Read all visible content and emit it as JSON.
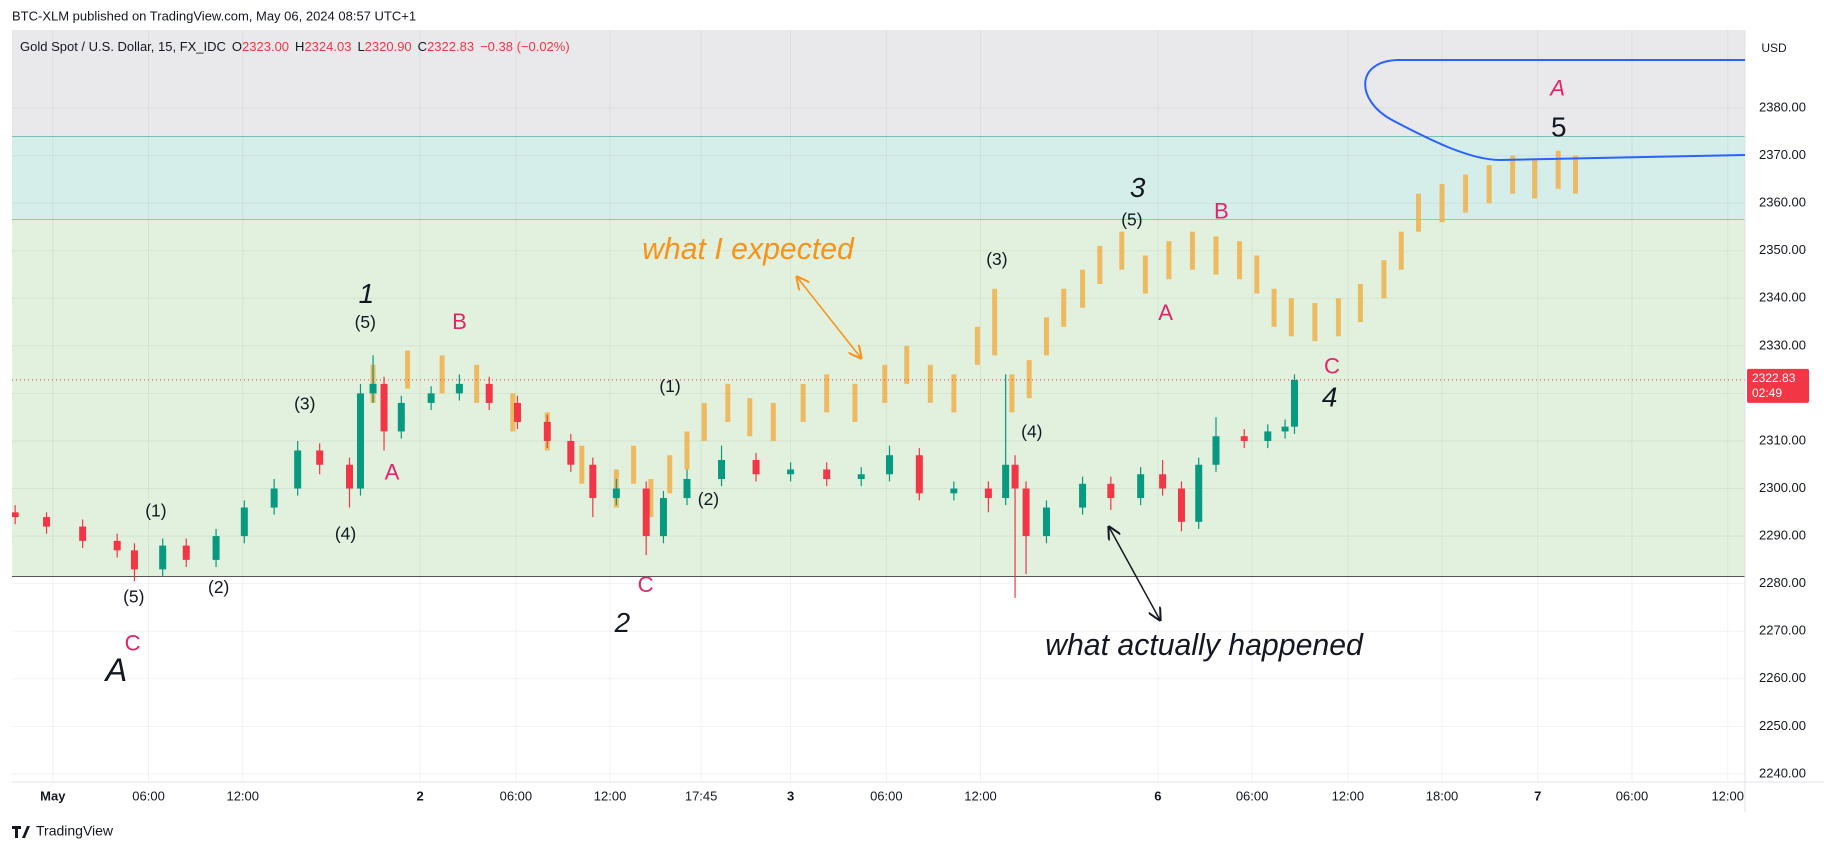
{
  "chart_data": {
    "type": "candlestick",
    "header": "BTC-XLM published on TradingView.com, May 06, 2024 08:57 UTC+1",
    "symbol": "Gold Spot / U.S. Dollar, 15, FX_IDC",
    "ohlc_legend": [
      {
        "key": "O",
        "value": "2323.00"
      },
      {
        "key": "H",
        "value": "2324.03"
      },
      {
        "key": "L",
        "value": "2320.90"
      },
      {
        "key": "C",
        "value": "2322.83"
      }
    ],
    "change": "−0.38 (−0.02%)",
    "currency": "USD",
    "footer": "TradingView",
    "last_price": 2322.83,
    "countdown": "02:49",
    "xlim": [
      -2.6,
      107.8
    ],
    "xticks": [
      {
        "value": 0,
        "label": "May"
      },
      {
        "value": 6.1,
        "label": "06:00"
      },
      {
        "value": 12.1,
        "label": "12:00"
      },
      {
        "value": 23.4,
        "label": "2"
      },
      {
        "value": 29.5,
        "label": "06:00"
      },
      {
        "value": 35.5,
        "label": "12:00"
      },
      {
        "value": 41.3,
        "label": "17:45"
      },
      {
        "value": 47,
        "label": "3"
      },
      {
        "value": 53.1,
        "label": "06:00"
      },
      {
        "value": 59.1,
        "label": "12:00"
      },
      {
        "value": 70.4,
        "label": "6"
      },
      {
        "value": 76.4,
        "label": "06:00"
      },
      {
        "value": 82.5,
        "label": "12:00"
      },
      {
        "value": 88.5,
        "label": "18:00"
      },
      {
        "value": 94.6,
        "label": "7"
      },
      {
        "value": 100.6,
        "label": "06:00"
      },
      {
        "value": 106.7,
        "label": "12:00"
      }
    ],
    "ylim": [
      2238.3,
      2396.4
    ],
    "yticks": [
      {
        "value": 2240,
        "label": "2240.00"
      },
      {
        "value": 2250,
        "label": "2250.00"
      },
      {
        "value": 2260,
        "label": "2260.00"
      },
      {
        "value": 2270,
        "label": "2270.00"
      },
      {
        "value": 2280,
        "label": "2280.00"
      },
      {
        "value": 2290,
        "label": "2290.00"
      },
      {
        "value": 2300,
        "label": "2300.00"
      },
      {
        "value": 2310,
        "label": "2310.00"
      },
      {
        "value": 2320,
        "label": "2320.00"
      },
      {
        "value": 2330,
        "label": "2330.00"
      },
      {
        "value": 2340,
        "label": "2340.00"
      },
      {
        "value": 2350,
        "label": "2350.00"
      },
      {
        "value": 2360,
        "label": "2360.00"
      },
      {
        "value": 2370,
        "label": "2370.00"
      },
      {
        "value": 2380,
        "label": "2380.00"
      }
    ],
    "grid": true,
    "zones": [
      {
        "from": 2374,
        "to": 2400,
        "color": "#e9e9ec",
        "border": "#2a9d8f"
      },
      {
        "from": 2356.5,
        "to": 2374,
        "color": "#d6eeea",
        "border": "#4caf50"
      },
      {
        "from": 2281.5,
        "to": 2356.5,
        "color": "#e1f1de",
        "border": "#555555"
      }
    ],
    "candles": {
      "up_color": "#089981",
      "down_color": "#f23645",
      "x": [
        -2.4,
        -0.4,
        1.9,
        4.1,
        5.2,
        7.0,
        8.5,
        10.4,
        12.2,
        14.1,
        15.6,
        17.0,
        18.9,
        19.6,
        20.4,
        21.1,
        22.2,
        24.1,
        25.9,
        27.8,
        29.6,
        31.5,
        33.0,
        34.4,
        35.9,
        37.8,
        38.9,
        40.4,
        42.6,
        44.8,
        47.0,
        49.3,
        51.5,
        53.3,
        55.2,
        57.4,
        59.6,
        60.7,
        61.3,
        62.0,
        63.3,
        65.6,
        67.4,
        69.3,
        70.7,
        71.9,
        73.0,
        74.1,
        75.9,
        77.4,
        78.5,
        79.1
      ],
      "open": [
        2295,
        2294,
        2292,
        2289,
        2287,
        2283,
        2288,
        2285,
        2290,
        2296,
        2300,
        2308,
        2305,
        2300,
        2320,
        2322,
        2312,
        2318,
        2320,
        2322,
        2318,
        2314,
        2310,
        2305,
        2298,
        2300,
        2290,
        2298,
        2302,
        2306,
        2303,
        2304,
        2302,
        2303,
        2307,
        2299,
        2300,
        2298,
        2305,
        2300,
        2290,
        2296,
        2301,
        2298,
        2303,
        2300,
        2293,
        2305,
        2311,
        2310,
        2312,
        2313
      ],
      "high": [
        2296.5,
        2295,
        2293.5,
        2290.5,
        2288.5,
        2289.5,
        2289.5,
        2291.5,
        2297.5,
        2302,
        2310,
        2309.5,
        2306.5,
        2322,
        2328,
        2323.5,
        2319.5,
        2321.5,
        2324,
        2323.5,
        2319.5,
        2315.5,
        2311.5,
        2306.5,
        2302,
        2301.5,
        2299.5,
        2304,
        2309,
        2307.5,
        2305.5,
        2305.5,
        2304.5,
        2309,
        2308.5,
        2301.5,
        2301.5,
        2324,
        2307,
        2301.5,
        2297.5,
        2302.5,
        2302.5,
        2304.5,
        2306,
        2301.5,
        2306.5,
        2315,
        2312.5,
        2313.5,
        2314.5,
        2324.03
      ],
      "low": [
        2292.5,
        2290.5,
        2287.5,
        2285.5,
        2280.5,
        2281.5,
        2283.5,
        2283.5,
        2288.5,
        2294.5,
        2298.5,
        2303,
        2296,
        2298.5,
        2318,
        2308,
        2310.5,
        2316.5,
        2318.5,
        2316.5,
        2312.5,
        2308.5,
        2303.5,
        2294,
        2296.5,
        2286,
        2288.5,
        2296.5,
        2300.5,
        2301.5,
        2301.5,
        2300.5,
        2300.5,
        2301.5,
        2297.5,
        2297.5,
        2295,
        2296.5,
        2277,
        2282,
        2288.5,
        2294.5,
        2295.5,
        2296.5,
        2298.5,
        2291,
        2291.5,
        2303.5,
        2308.5,
        2308.5,
        2310.5,
        2311.5
      ],
      "close": [
        2294,
        2292,
        2289,
        2287,
        2283,
        2288,
        2285,
        2290,
        2296,
        2300,
        2308,
        2305,
        2300,
        2320,
        2322,
        2312,
        2318,
        2320,
        2322,
        2318,
        2314,
        2310,
        2305,
        2298,
        2300,
        2290,
        2298,
        2302,
        2306,
        2303,
        2304,
        2302,
        2303,
        2307,
        2299,
        2300,
        2298,
        2305,
        2300,
        2290,
        2296,
        2301,
        2298,
        2303,
        2300,
        2293,
        2305,
        2311,
        2310,
        2312,
        2313,
        2322.83
      ]
    },
    "projection": {
      "color": "#f0b04a",
      "x": [
        20.4,
        22.6,
        24.8,
        27.0,
        29.3,
        31.5,
        33.7,
        35.9,
        37.0,
        38.1,
        39.3,
        40.4,
        41.5,
        43.0,
        44.4,
        45.9,
        47.8,
        49.3,
        51.1,
        53.0,
        54.4,
        55.9,
        57.4,
        58.9,
        60.0,
        61.1,
        62.2,
        63.3,
        64.4,
        65.6,
        66.7,
        68.1,
        69.6,
        71.1,
        72.6,
        74.1,
        75.6,
        76.7,
        77.8,
        78.9,
        80.4,
        81.9,
        83.3,
        84.8,
        85.9,
        87.0,
        88.5,
        90.0,
        91.5,
        93.0,
        94.4,
        95.9,
        97.0
      ],
      "high": [
        2326,
        2329,
        2328,
        2326,
        2320,
        2316,
        2309,
        2304,
        2309,
        2302,
        2307,
        2312,
        2318,
        2322,
        2319,
        2318,
        2322,
        2324,
        2322,
        2326,
        2330,
        2326,
        2324,
        2334,
        2342,
        2324,
        2327,
        2336,
        2342,
        2346,
        2351,
        2354,
        2349,
        2352,
        2354,
        2353,
        2352,
        2349,
        2342,
        2340,
        2339,
        2340,
        2343,
        2348,
        2354,
        2362,
        2364,
        2366,
        2368,
        2370,
        2369,
        2371,
        2370
      ],
      "low": [
        2318,
        2321,
        2320,
        2318,
        2312,
        2308,
        2301,
        2296,
        2301,
        2294,
        2299,
        2304,
        2310,
        2314,
        2311,
        2310,
        2314,
        2316,
        2314,
        2318,
        2322,
        2318,
        2316,
        2326,
        2328,
        2316,
        2319,
        2328,
        2334,
        2338,
        2343,
        2346,
        2341,
        2344,
        2346,
        2345,
        2344,
        2341,
        2334,
        2332,
        2331,
        2332,
        2335,
        2340,
        2346,
        2354,
        2356,
        2358,
        2360,
        2362,
        2361,
        2363,
        2362
      ]
    },
    "annotations": [
      {
        "text": "what I expected",
        "color": "#f7931a"
      },
      {
        "text": "what actually happened",
        "color": "#131722"
      },
      {
        "text": "1",
        "color": "#131722"
      },
      {
        "text": "(5)",
        "color": "#131722"
      },
      {
        "text": "B",
        "color": "#e0256a"
      },
      {
        "text": "(3)",
        "color": "#131722"
      },
      {
        "text": "A",
        "color": "#e0256a"
      },
      {
        "text": "(4)",
        "color": "#131722"
      },
      {
        "text": "(1)",
        "color": "#131722"
      },
      {
        "text": "(2)",
        "color": "#131722"
      },
      {
        "text": "(5)",
        "color": "#131722"
      },
      {
        "text": "C",
        "color": "#e0256a"
      },
      {
        "text": "A",
        "color": "#131722"
      },
      {
        "text": "(1)",
        "color": "#131722"
      },
      {
        "text": "(2)",
        "color": "#131722"
      },
      {
        "text": "C",
        "color": "#e0256a"
      },
      {
        "text": "2",
        "color": "#131722"
      },
      {
        "text": "(3)",
        "color": "#131722"
      },
      {
        "text": "(4)",
        "color": "#131722"
      },
      {
        "text": "3",
        "color": "#131722"
      },
      {
        "text": "(5)",
        "color": "#131722"
      },
      {
        "text": "B",
        "color": "#e0256a"
      },
      {
        "text": "A",
        "color": "#e0256a"
      },
      {
        "text": "C",
        "color": "#e0256a"
      },
      {
        "text": "4",
        "color": "#131722"
      },
      {
        "text": "A",
        "color": "#e0256a"
      },
      {
        "text": "5",
        "color": "#131722"
      }
    ]
  }
}
